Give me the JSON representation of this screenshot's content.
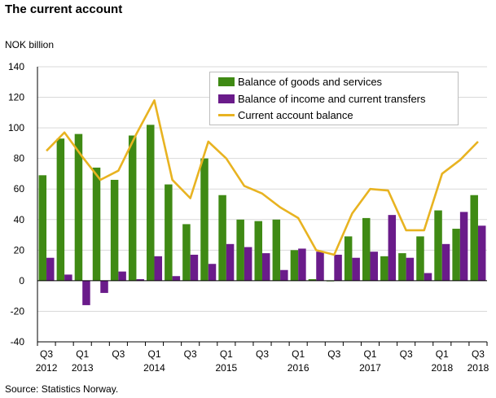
{
  "page": {
    "title": "The current account",
    "source": "Source: Statistics Norway."
  },
  "chart_data": {
    "type": "bar",
    "ylabel": "NOK billion",
    "ylim": [
      -40,
      140
    ],
    "yticks": [
      -40,
      -20,
      0,
      20,
      40,
      60,
      80,
      100,
      120,
      140
    ],
    "grid": true,
    "legend_position": "top-right",
    "categories": [
      "Q3 2012",
      "Q4 2012",
      "Q1 2013",
      "Q2 2013",
      "Q3 2013",
      "Q4 2013",
      "Q1 2014",
      "Q2 2014",
      "Q3 2014",
      "Q4 2014",
      "Q1 2015",
      "Q2 2015",
      "Q3 2015",
      "Q4 2015",
      "Q1 2016",
      "Q2 2016",
      "Q3 2016",
      "Q4 2016",
      "Q1 2017",
      "Q2 2017",
      "Q3 2017",
      "Q4 2017",
      "Q1 2018",
      "Q2 2018",
      "Q3 2018"
    ],
    "x_tick_labels": [
      {
        "index": 0,
        "line1": "Q3",
        "line2": "2012"
      },
      {
        "index": 2,
        "line1": "Q1",
        "line2": "2013"
      },
      {
        "index": 4,
        "line1": "Q3",
        "line2": ""
      },
      {
        "index": 6,
        "line1": "Q1",
        "line2": "2014"
      },
      {
        "index": 8,
        "line1": "Q3",
        "line2": ""
      },
      {
        "index": 10,
        "line1": "Q1",
        "line2": "2015"
      },
      {
        "index": 12,
        "line1": "Q3",
        "line2": ""
      },
      {
        "index": 14,
        "line1": "Q1",
        "line2": "2016"
      },
      {
        "index": 16,
        "line1": "Q3",
        "line2": ""
      },
      {
        "index": 18,
        "line1": "Q1",
        "line2": "2017"
      },
      {
        "index": 20,
        "line1": "Q3",
        "line2": ""
      },
      {
        "index": 22,
        "line1": "Q1",
        "line2": "2018"
      },
      {
        "index": 24,
        "line1": "Q3",
        "line2": "2018"
      }
    ],
    "series": [
      {
        "name": "Balance of goods and services",
        "kind": "bar",
        "color": "#3f8a14",
        "values": [
          69,
          93,
          96,
          74,
          66,
          95,
          102,
          63,
          37,
          80,
          56,
          40,
          39,
          40,
          20,
          1,
          0,
          29,
          41,
          16,
          18,
          29,
          46,
          34,
          56
        ]
      },
      {
        "name": "Balance of income and current transfers",
        "kind": "bar",
        "color": "#6a1b8a",
        "values": [
          15,
          4,
          -16,
          -8,
          6,
          1,
          16,
          3,
          17,
          11,
          24,
          22,
          18,
          7,
          21,
          19,
          17,
          15,
          19,
          43,
          15,
          5,
          24,
          45,
          36
        ]
      },
      {
        "name": "Current account balance",
        "kind": "line",
        "color": "#e8b321",
        "values": [
          85,
          97,
          81,
          66,
          72,
          96,
          118,
          66,
          54,
          91,
          80,
          62,
          57,
          48,
          41,
          20,
          17,
          44,
          60,
          59,
          33,
          33,
          70,
          79,
          91
        ]
      }
    ]
  }
}
